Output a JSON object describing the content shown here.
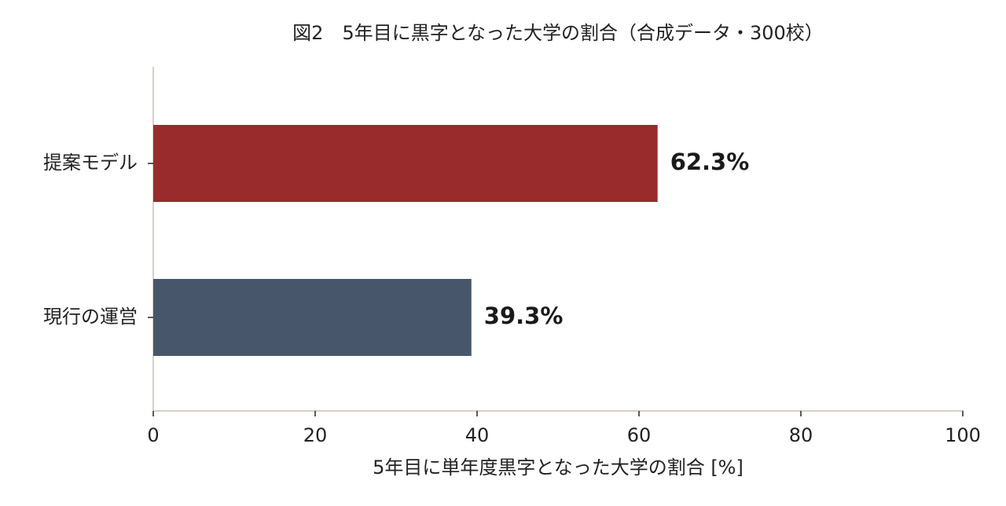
{
  "chart_data": {
    "type": "barh",
    "title": "図2　5年目に黒字となった大学の割合（合成データ・300校）",
    "x_label": "5年目に単年度黒字となった大学の割合 [%]",
    "categories": [
      "提案モデル",
      "現行の運営"
    ],
    "values": [
      62.3,
      39.3
    ],
    "value_labels": [
      "62.3%",
      "39.3%"
    ],
    "colors": [
      "#992b2c",
      "#48566b"
    ],
    "xlim": [
      0,
      100
    ],
    "xticks": [
      0,
      20,
      40,
      60,
      80,
      100
    ]
  }
}
